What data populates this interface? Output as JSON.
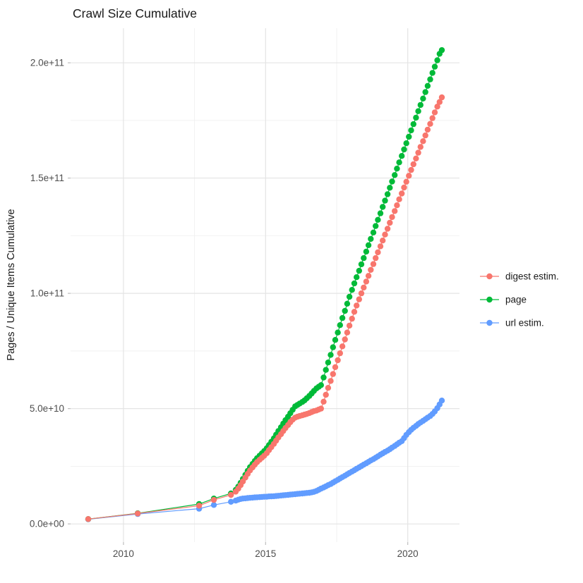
{
  "title": "Crawl Size Cumulative",
  "y_axis_title": "Pages / Unique Items Cumulative",
  "legend": {
    "position": "right",
    "items": [
      {
        "label": "digest estim.",
        "color": "#F8766D"
      },
      {
        "label": "page",
        "color": "#00BA38"
      },
      {
        "label": "url estim.",
        "color": "#619CFF"
      }
    ]
  },
  "colors": {
    "digest": "#F8766D",
    "page": "#00BA38",
    "url": "#619CFF",
    "grid_major": "#e4e4e4",
    "grid_minor": "#f0f0f0",
    "tick_mark": "#bdbdbd",
    "tick_text": "#4d4d4d"
  },
  "chart_data": {
    "type": "scatter",
    "title": "Crawl Size Cumulative",
    "xlabel": "",
    "ylabel": "Pages / Unique Items Cumulative",
    "grid": true,
    "legend_position": "right",
    "value_unit": "1e9 (all point values are in billions of pages / items)",
    "xlim": [
      2008.14,
      2021.82
    ],
    "ylim_billions": [
      -7.9,
      215
    ],
    "x_ticks": [
      {
        "value": 2010,
        "label": "2010"
      },
      {
        "value": 2015,
        "label": "2015"
      },
      {
        "value": 2020,
        "label": "2020"
      }
    ],
    "x_minor_ticks": [
      2012.5,
      2017.5
    ],
    "y_ticks": [
      {
        "value": 0,
        "label": "0.0e+00"
      },
      {
        "value": 50,
        "label": "5.0e+10"
      },
      {
        "value": 100,
        "label": "1.0e+11"
      },
      {
        "value": 150,
        "label": "1.5e+11"
      },
      {
        "value": 200,
        "label": "2.0e+11"
      }
    ],
    "y_minor_ticks": [
      25,
      75,
      125,
      175
    ],
    "series": [
      {
        "name": "digest estim.",
        "color": "#F8766D",
        "points": [
          [
            2008.76,
            2.1
          ],
          [
            2010.5,
            4.5
          ],
          [
            2012.66,
            7.9
          ],
          [
            2013.18,
            10.4
          ],
          [
            2013.78,
            12.6
          ],
          [
            2013.95,
            14
          ],
          [
            2014.04,
            15.3
          ],
          [
            2014.12,
            16.8
          ],
          [
            2014.2,
            18.4
          ],
          [
            2014.29,
            20.1
          ],
          [
            2014.37,
            21.7
          ],
          [
            2014.45,
            23.2
          ],
          [
            2014.54,
            24.5
          ],
          [
            2014.62,
            25.7
          ],
          [
            2014.7,
            26.8
          ],
          [
            2014.79,
            27.8
          ],
          [
            2014.87,
            28.7
          ],
          [
            2014.95,
            29.6
          ],
          [
            2015.04,
            30.7
          ],
          [
            2015.12,
            32
          ],
          [
            2015.2,
            33.3
          ],
          [
            2015.29,
            34.7
          ],
          [
            2015.37,
            36.1
          ],
          [
            2015.45,
            37.5
          ],
          [
            2015.54,
            38.9
          ],
          [
            2015.62,
            40.3
          ],
          [
            2015.7,
            41.6
          ],
          [
            2015.79,
            42.9
          ],
          [
            2015.87,
            44.1
          ],
          [
            2015.95,
            45.2
          ],
          [
            2016.04,
            46.1
          ],
          [
            2016.12,
            46.5
          ],
          [
            2016.2,
            46.8
          ],
          [
            2016.29,
            47.1
          ],
          [
            2016.37,
            47.4
          ],
          [
            2016.45,
            47.7
          ],
          [
            2016.54,
            48.1
          ],
          [
            2016.62,
            48.5
          ],
          [
            2016.7,
            48.9
          ],
          [
            2016.79,
            49.2
          ],
          [
            2016.87,
            49.6
          ],
          [
            2016.95,
            50
          ],
          [
            2017.04,
            53
          ],
          [
            2017.12,
            56
          ],
          [
            2017.2,
            59
          ],
          [
            2017.29,
            62
          ],
          [
            2017.37,
            65
          ],
          [
            2017.45,
            68
          ],
          [
            2017.54,
            71
          ],
          [
            2017.62,
            74
          ],
          [
            2017.7,
            77
          ],
          [
            2017.79,
            80
          ],
          [
            2017.87,
            83
          ],
          [
            2017.95,
            86
          ],
          [
            2018.04,
            89
          ],
          [
            2018.12,
            92
          ],
          [
            2018.2,
            94.7
          ],
          [
            2018.29,
            97.4
          ],
          [
            2018.37,
            100
          ],
          [
            2018.45,
            102.5
          ],
          [
            2018.54,
            105.1
          ],
          [
            2018.62,
            107.6
          ],
          [
            2018.7,
            110.2
          ],
          [
            2018.79,
            112.7
          ],
          [
            2018.87,
            115.3
          ],
          [
            2018.95,
            117.8
          ],
          [
            2019.04,
            120.4
          ],
          [
            2019.12,
            122.9
          ],
          [
            2019.2,
            125.5
          ],
          [
            2019.29,
            128
          ],
          [
            2019.37,
            130.6
          ],
          [
            2019.45,
            133.1
          ],
          [
            2019.54,
            135.7
          ],
          [
            2019.62,
            138.2
          ],
          [
            2019.7,
            140.8
          ],
          [
            2019.79,
            143.3
          ],
          [
            2019.87,
            145.9
          ],
          [
            2019.95,
            148.4
          ],
          [
            2020.04,
            151
          ],
          [
            2020.12,
            153.5
          ],
          [
            2020.2,
            156
          ],
          [
            2020.29,
            158.5
          ],
          [
            2020.37,
            161
          ],
          [
            2020.45,
            163.5
          ],
          [
            2020.54,
            166
          ],
          [
            2020.62,
            168.5
          ],
          [
            2020.7,
            171
          ],
          [
            2020.79,
            173.5
          ],
          [
            2020.87,
            176
          ],
          [
            2020.95,
            178.5
          ],
          [
            2021.04,
            181
          ],
          [
            2021.12,
            183
          ],
          [
            2021.2,
            185
          ]
        ]
      },
      {
        "name": "page",
        "color": "#00BA38",
        "points": [
          [
            2008.76,
            2.1
          ],
          [
            2010.5,
            4.6
          ],
          [
            2012.66,
            8.6
          ],
          [
            2013.18,
            11
          ],
          [
            2013.78,
            13.2
          ],
          [
            2013.95,
            14.8
          ],
          [
            2014.04,
            16.2
          ],
          [
            2014.12,
            17.8
          ],
          [
            2014.2,
            19.5
          ],
          [
            2014.29,
            21.3
          ],
          [
            2014.37,
            23
          ],
          [
            2014.45,
            24.6
          ],
          [
            2014.54,
            26
          ],
          [
            2014.62,
            27.3
          ],
          [
            2014.7,
            28.5
          ],
          [
            2014.79,
            29.6
          ],
          [
            2014.87,
            30.6
          ],
          [
            2014.95,
            31.6
          ],
          [
            2015.04,
            32.8
          ],
          [
            2015.12,
            34.2
          ],
          [
            2015.2,
            35.6
          ],
          [
            2015.29,
            37.1
          ],
          [
            2015.37,
            38.7
          ],
          [
            2015.45,
            40.3
          ],
          [
            2015.54,
            41.9
          ],
          [
            2015.62,
            43.5
          ],
          [
            2015.7,
            45
          ],
          [
            2015.79,
            46.5
          ],
          [
            2015.87,
            48
          ],
          [
            2015.95,
            49.5
          ],
          [
            2016.04,
            51
          ],
          [
            2016.12,
            51.6
          ],
          [
            2016.2,
            52.2
          ],
          [
            2016.29,
            52.9
          ],
          [
            2016.37,
            53.6
          ],
          [
            2016.45,
            54.5
          ],
          [
            2016.54,
            55.5
          ],
          [
            2016.62,
            56.6
          ],
          [
            2016.7,
            57.7
          ],
          [
            2016.79,
            58.8
          ],
          [
            2016.87,
            59.5
          ],
          [
            2016.95,
            60.2
          ],
          [
            2017.04,
            63.5
          ],
          [
            2017.12,
            66.8
          ],
          [
            2017.2,
            70
          ],
          [
            2017.29,
            73.3
          ],
          [
            2017.37,
            76.6
          ],
          [
            2017.45,
            79.8
          ],
          [
            2017.54,
            83
          ],
          [
            2017.62,
            86.2
          ],
          [
            2017.7,
            89.3
          ],
          [
            2017.79,
            92.4
          ],
          [
            2017.87,
            95.5
          ],
          [
            2017.95,
            98.5
          ],
          [
            2018.04,
            101.5
          ],
          [
            2018.12,
            104.3
          ],
          [
            2018.2,
            107
          ],
          [
            2018.29,
            109.8
          ],
          [
            2018.37,
            112.6
          ],
          [
            2018.45,
            115.3
          ],
          [
            2018.54,
            118.1
          ],
          [
            2018.62,
            120.9
          ],
          [
            2018.7,
            123.6
          ],
          [
            2018.79,
            126.4
          ],
          [
            2018.87,
            129.2
          ],
          [
            2018.95,
            131.9
          ],
          [
            2019.04,
            134.7
          ],
          [
            2019.12,
            137.5
          ],
          [
            2019.2,
            140.2
          ],
          [
            2019.29,
            143
          ],
          [
            2019.37,
            145.8
          ],
          [
            2019.45,
            148.5
          ],
          [
            2019.54,
            151.3
          ],
          [
            2019.62,
            154.1
          ],
          [
            2019.7,
            156.8
          ],
          [
            2019.79,
            159.6
          ],
          [
            2019.87,
            162.4
          ],
          [
            2019.95,
            165.1
          ],
          [
            2020.04,
            167.9
          ],
          [
            2020.12,
            170.7
          ],
          [
            2020.2,
            173.4
          ],
          [
            2020.29,
            176.2
          ],
          [
            2020.37,
            179
          ],
          [
            2020.45,
            181.7
          ],
          [
            2020.54,
            184.5
          ],
          [
            2020.62,
            187.3
          ],
          [
            2020.7,
            190
          ],
          [
            2020.79,
            192.8
          ],
          [
            2020.87,
            195.6
          ],
          [
            2020.95,
            198.3
          ],
          [
            2021.04,
            201.1
          ],
          [
            2021.12,
            203.9
          ],
          [
            2021.2,
            205.5
          ]
        ]
      },
      {
        "name": "url estim.",
        "color": "#619CFF",
        "points": [
          [
            2008.76,
            2
          ],
          [
            2010.5,
            4.3
          ],
          [
            2012.66,
            6.6
          ],
          [
            2013.18,
            8.2
          ],
          [
            2013.78,
            9.6
          ],
          [
            2013.95,
            10.1
          ],
          [
            2014.04,
            10.5
          ],
          [
            2014.12,
            10.8
          ],
          [
            2014.2,
            11
          ],
          [
            2014.29,
            11.1
          ],
          [
            2014.37,
            11.2
          ],
          [
            2014.45,
            11.3
          ],
          [
            2014.54,
            11.4
          ],
          [
            2014.62,
            11.5
          ],
          [
            2014.7,
            11.55
          ],
          [
            2014.79,
            11.6
          ],
          [
            2014.87,
            11.7
          ],
          [
            2014.95,
            11.75
          ],
          [
            2015.04,
            11.8
          ],
          [
            2015.12,
            11.9
          ],
          [
            2015.2,
            11.95
          ],
          [
            2015.29,
            12
          ],
          [
            2015.37,
            12.1
          ],
          [
            2015.45,
            12.2
          ],
          [
            2015.54,
            12.3
          ],
          [
            2015.62,
            12.4
          ],
          [
            2015.7,
            12.5
          ],
          [
            2015.79,
            12.6
          ],
          [
            2015.87,
            12.7
          ],
          [
            2015.95,
            12.8
          ],
          [
            2016.04,
            12.9
          ],
          [
            2016.12,
            13
          ],
          [
            2016.2,
            13.1
          ],
          [
            2016.29,
            13.2
          ],
          [
            2016.37,
            13.3
          ],
          [
            2016.45,
            13.4
          ],
          [
            2016.54,
            13.5
          ],
          [
            2016.62,
            13.7
          ],
          [
            2016.7,
            13.9
          ],
          [
            2016.79,
            14.3
          ],
          [
            2016.87,
            14.8
          ],
          [
            2016.95,
            15.3
          ],
          [
            2017.04,
            15.8
          ],
          [
            2017.12,
            16.3
          ],
          [
            2017.2,
            16.8
          ],
          [
            2017.29,
            17.3
          ],
          [
            2017.37,
            17.9
          ],
          [
            2017.45,
            18.5
          ],
          [
            2017.54,
            19.1
          ],
          [
            2017.62,
            19.7
          ],
          [
            2017.7,
            20.3
          ],
          [
            2017.79,
            20.9
          ],
          [
            2017.87,
            21.5
          ],
          [
            2017.95,
            22.1
          ],
          [
            2018.04,
            22.7
          ],
          [
            2018.12,
            23.3
          ],
          [
            2018.2,
            23.9
          ],
          [
            2018.29,
            24.5
          ],
          [
            2018.37,
            25.1
          ],
          [
            2018.45,
            25.7
          ],
          [
            2018.54,
            26.3
          ],
          [
            2018.62,
            26.9
          ],
          [
            2018.7,
            27.5
          ],
          [
            2018.79,
            28.1
          ],
          [
            2018.87,
            28.7
          ],
          [
            2018.95,
            29.3
          ],
          [
            2019.04,
            30
          ],
          [
            2019.12,
            30.6
          ],
          [
            2019.2,
            31.2
          ],
          [
            2019.29,
            31.8
          ],
          [
            2019.37,
            32.4
          ],
          [
            2019.45,
            33.1
          ],
          [
            2019.54,
            33.8
          ],
          [
            2019.62,
            34.5
          ],
          [
            2019.7,
            35.2
          ],
          [
            2019.79,
            35.9
          ],
          [
            2019.87,
            37.2
          ],
          [
            2019.95,
            38.6
          ],
          [
            2020.04,
            39.8
          ],
          [
            2020.12,
            40.8
          ],
          [
            2020.2,
            41.7
          ],
          [
            2020.29,
            42.5
          ],
          [
            2020.37,
            43.3
          ],
          [
            2020.45,
            44
          ],
          [
            2020.54,
            44.7
          ],
          [
            2020.62,
            45.4
          ],
          [
            2020.7,
            46.1
          ],
          [
            2020.79,
            46.8
          ],
          [
            2020.87,
            47.7
          ],
          [
            2020.95,
            48.8
          ],
          [
            2021.04,
            50.2
          ],
          [
            2021.12,
            51.8
          ],
          [
            2021.2,
            53.5
          ]
        ]
      }
    ]
  }
}
